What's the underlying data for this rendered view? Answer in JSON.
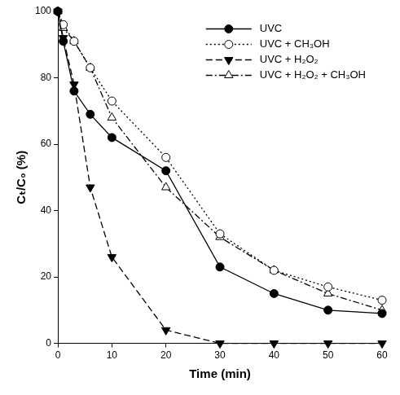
{
  "chart_data": {
    "type": "line",
    "x_label": "Time (min)",
    "y_label": "Cₜ/C₀ (%)",
    "x": [
      0,
      1,
      3,
      6,
      10,
      20,
      30,
      40,
      50,
      60
    ],
    "series": [
      {
        "name": "UVC",
        "color": "#000000",
        "marker": "filled_circle",
        "line_style": "solid",
        "values": [
          100,
          91,
          76,
          69,
          62,
          52,
          23,
          15,
          10,
          9
        ]
      },
      {
        "name": "UVC + CH₃OH",
        "color": "#000000",
        "marker": "open_circle",
        "line_style": "dotted",
        "values": [
          100,
          96,
          91,
          83,
          73,
          56,
          33,
          22,
          17,
          13
        ]
      },
      {
        "name": "UVC + H₂O₂",
        "color": "#000000",
        "marker": "filled_triangle_down",
        "line_style": "dashed",
        "values": [
          100,
          92,
          78,
          47,
          26,
          4,
          0,
          0,
          0,
          0
        ]
      },
      {
        "name": "UVC + H₂O₂ + CH₃OH",
        "color": "#000000",
        "marker": "open_triangle_up",
        "line_style": "dashdot",
        "values": [
          100,
          95,
          91,
          83,
          68,
          47,
          32,
          22,
          15,
          10
        ]
      }
    ],
    "xlim": [
      0,
      60
    ],
    "xticks": [
      0,
      10,
      20,
      30,
      40,
      50,
      60
    ],
    "ylim": [
      0,
      100
    ],
    "yticks": [
      0,
      20,
      40,
      60,
      80,
      100
    ],
    "grid": false,
    "legend": "upper right"
  }
}
